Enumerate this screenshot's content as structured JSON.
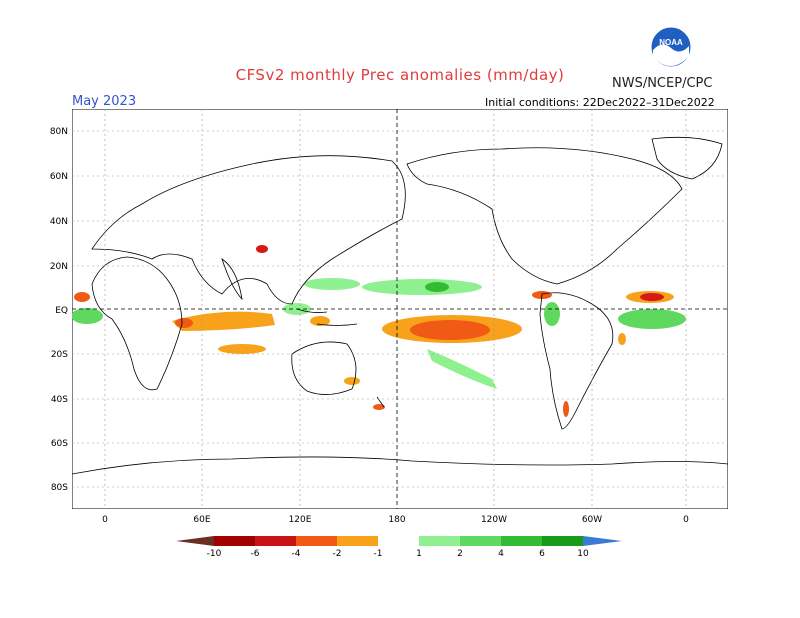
{
  "header": {
    "title": "CFSv2 monthly Prec anomalies (mm/day)",
    "credit": "NWS/NCEP/CPC",
    "month": "May 2023",
    "initial_conditions": "Initial conditions: 22Dec2022–31Dec2022",
    "logo_text": "NOAA"
  },
  "map": {
    "lat_labels": [
      "80N",
      "60N",
      "40N",
      "20N",
      "EQ",
      "20S",
      "40S",
      "60S",
      "80S"
    ],
    "lon_labels": [
      "0",
      "60E",
      "120E",
      "180",
      "120W",
      "60W",
      "0"
    ]
  },
  "colorbar": {
    "labels": [
      "-10",
      "-6",
      "-4",
      "-2",
      "-1",
      "1",
      "2",
      "4",
      "6",
      "10"
    ],
    "colors": {
      "lt_minus10": "#6b2e22",
      "minus10_minus6": "#a00000",
      "minus6_minus4": "#d41a1a",
      "minus4_minus2": "#f05a14",
      "minus2_minus1": "#f7a21a",
      "near_zero": "#ffffff",
      "one_two": "#8ff08f",
      "two_four": "#5fd85f",
      "four_six": "#33bb33",
      "six_ten": "#1a9a1a",
      "gt_10": "#3a7bd5"
    }
  }
}
